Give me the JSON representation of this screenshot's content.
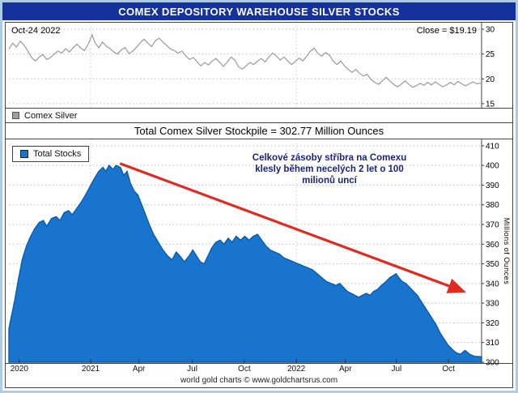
{
  "header": {
    "title": "COMEX DEPOSITORY WAREHOUSE SILVER STOCKS"
  },
  "price_panel": {
    "date_label": "Oct-24  2022",
    "close_label": "Close = $19.19",
    "legend_label": "Comex Silver"
  },
  "stock_panel": {
    "title": "Total Comex Silver Stockpile = 302.77 Million Ounces",
    "legend_label": "Total Stocks",
    "annotation_lines": [
      "Celkové zásoby stříbra na Comexu",
      "klesly během necelých 2 let o 100",
      "milionů uncí"
    ],
    "y_axis_label": "Millions of Ounces"
  },
  "footer": {
    "credit": "world gold charts © www.goldchartsrus.com"
  },
  "colors": {
    "header_bg": "#14319c",
    "area_fill": "#1874cd",
    "area_stroke": "#0d5ca8",
    "price_line": "#9a9a9a",
    "arrow": "#e02b20",
    "annotation_text": "#1c2478"
  },
  "chart_data": [
    {
      "type": "line",
      "name": "Comex Silver Price (USD/oz)",
      "title": "Comex Silver",
      "close": 19.19,
      "close_date": "Oct-24 2022",
      "ylim": [
        14.5,
        31
      ],
      "yticks": [
        15,
        20,
        25,
        30
      ],
      "grid": true,
      "legend_position": "bottom-left",
      "stroke": "#9a9a9a",
      "vgrid": [
        0.173,
        0.608
      ],
      "x_note": "x is fraction of time axis, mid-2020 through Oct-2022",
      "points": [
        [
          0.0,
          26.0
        ],
        [
          0.008,
          27.2
        ],
        [
          0.016,
          26.4
        ],
        [
          0.024,
          27.6
        ],
        [
          0.032,
          26.8
        ],
        [
          0.04,
          25.6
        ],
        [
          0.048,
          24.3
        ],
        [
          0.056,
          23.6
        ],
        [
          0.064,
          24.4
        ],
        [
          0.072,
          24.9
        ],
        [
          0.08,
          23.9
        ],
        [
          0.088,
          24.3
        ],
        [
          0.096,
          25.0
        ],
        [
          0.104,
          25.6
        ],
        [
          0.112,
          25.2
        ],
        [
          0.12,
          26.1
        ],
        [
          0.128,
          25.4
        ],
        [
          0.136,
          26.3
        ],
        [
          0.144,
          27.0
        ],
        [
          0.152,
          26.2
        ],
        [
          0.16,
          25.7
        ],
        [
          0.168,
          27.0
        ],
        [
          0.176,
          28.9
        ],
        [
          0.182,
          27.3
        ],
        [
          0.19,
          26.3
        ],
        [
          0.198,
          27.4
        ],
        [
          0.206,
          26.6
        ],
        [
          0.214,
          26.1
        ],
        [
          0.222,
          25.4
        ],
        [
          0.23,
          25.0
        ],
        [
          0.238,
          25.9
        ],
        [
          0.246,
          26.3
        ],
        [
          0.254,
          25.1
        ],
        [
          0.262,
          25.6
        ],
        [
          0.27,
          26.4
        ],
        [
          0.278,
          27.3
        ],
        [
          0.286,
          28.0
        ],
        [
          0.294,
          27.2
        ],
        [
          0.302,
          26.5
        ],
        [
          0.31,
          27.7
        ],
        [
          0.318,
          28.2
        ],
        [
          0.326,
          27.4
        ],
        [
          0.334,
          26.7
        ],
        [
          0.342,
          26.0
        ],
        [
          0.35,
          25.7
        ],
        [
          0.358,
          25.2
        ],
        [
          0.366,
          25.6
        ],
        [
          0.374,
          24.7
        ],
        [
          0.382,
          23.9
        ],
        [
          0.39,
          24.3
        ],
        [
          0.398,
          23.5
        ],
        [
          0.406,
          22.6
        ],
        [
          0.414,
          23.3
        ],
        [
          0.422,
          22.8
        ],
        [
          0.43,
          23.6
        ],
        [
          0.438,
          24.1
        ],
        [
          0.446,
          23.3
        ],
        [
          0.454,
          22.5
        ],
        [
          0.462,
          23.4
        ],
        [
          0.47,
          24.4
        ],
        [
          0.478,
          23.8
        ],
        [
          0.486,
          22.4
        ],
        [
          0.494,
          22.0
        ],
        [
          0.502,
          22.6
        ],
        [
          0.51,
          23.3
        ],
        [
          0.518,
          22.9
        ],
        [
          0.526,
          23.6
        ],
        [
          0.534,
          24.1
        ],
        [
          0.542,
          23.4
        ],
        [
          0.55,
          24.4
        ],
        [
          0.558,
          25.2
        ],
        [
          0.566,
          24.6
        ],
        [
          0.574,
          23.8
        ],
        [
          0.582,
          24.4
        ],
        [
          0.59,
          23.6
        ],
        [
          0.598,
          22.9
        ],
        [
          0.606,
          23.5
        ],
        [
          0.614,
          24.2
        ],
        [
          0.622,
          23.6
        ],
        [
          0.63,
          24.6
        ],
        [
          0.638,
          25.6
        ],
        [
          0.646,
          26.2
        ],
        [
          0.654,
          25.1
        ],
        [
          0.662,
          24.6
        ],
        [
          0.67,
          25.3
        ],
        [
          0.678,
          24.8
        ],
        [
          0.686,
          23.6
        ],
        [
          0.694,
          22.9
        ],
        [
          0.702,
          23.6
        ],
        [
          0.71,
          22.6
        ],
        [
          0.718,
          21.9
        ],
        [
          0.726,
          21.3
        ],
        [
          0.734,
          21.9
        ],
        [
          0.742,
          21.1
        ],
        [
          0.75,
          20.6
        ],
        [
          0.758,
          20.9
        ],
        [
          0.766,
          19.9
        ],
        [
          0.774,
          19.3
        ],
        [
          0.782,
          18.9
        ],
        [
          0.79,
          19.6
        ],
        [
          0.798,
          20.3
        ],
        [
          0.806,
          19.6
        ],
        [
          0.814,
          18.9
        ],
        [
          0.822,
          18.4
        ],
        [
          0.83,
          18.9
        ],
        [
          0.838,
          19.6
        ],
        [
          0.846,
          18.9
        ],
        [
          0.854,
          18.3
        ],
        [
          0.862,
          18.6
        ],
        [
          0.87,
          19.1
        ],
        [
          0.878,
          18.7
        ],
        [
          0.886,
          19.3
        ],
        [
          0.894,
          18.8
        ],
        [
          0.902,
          19.4
        ],
        [
          0.91,
          18.9
        ],
        [
          0.918,
          18.4
        ],
        [
          0.926,
          18.8
        ],
        [
          0.934,
          19.3
        ],
        [
          0.942,
          18.8
        ],
        [
          0.95,
          19.5
        ],
        [
          0.958,
          19.0
        ],
        [
          0.966,
          18.6
        ],
        [
          0.974,
          19.0
        ],
        [
          0.982,
          19.4
        ],
        [
          0.99,
          19.0
        ],
        [
          1.0,
          19.19
        ]
      ]
    },
    {
      "type": "area",
      "name": "Total Comex Silver Stockpile (Million Ounces)",
      "title": "Total Comex Silver Stockpile = 302.77 Million Ounces",
      "current": 302.77,
      "ylabel": "Millions of Ounces",
      "ylim": [
        300,
        412
      ],
      "yticks": [
        300,
        310,
        320,
        330,
        340,
        350,
        360,
        370,
        380,
        390,
        400,
        410
      ],
      "grid": true,
      "legend_position": "top-left",
      "fill": "#1874cd",
      "stroke": "#0d5ca8",
      "vgrid": [
        0.173,
        0.608
      ],
      "x_ticks": [
        {
          "label": "2020",
          "f": 0.022
        },
        {
          "label": "2021",
          "f": 0.173
        },
        {
          "label": "Apr",
          "f": 0.275
        },
        {
          "label": "Jul",
          "f": 0.388
        },
        {
          "label": "Oct",
          "f": 0.498
        },
        {
          "label": "2022",
          "f": 0.608
        },
        {
          "label": "Apr",
          "f": 0.712
        },
        {
          "label": "Jul",
          "f": 0.82
        },
        {
          "label": "Oct",
          "f": 0.93
        }
      ],
      "trend_arrow": {
        "from": [
          0.235,
          401
        ],
        "to": [
          0.962,
          336
        ],
        "color": "#e02b20"
      },
      "points": [
        [
          0.0,
          317
        ],
        [
          0.005,
          323
        ],
        [
          0.012,
          331
        ],
        [
          0.02,
          342
        ],
        [
          0.028,
          352
        ],
        [
          0.037,
          359
        ],
        [
          0.046,
          364
        ],
        [
          0.055,
          368
        ],
        [
          0.064,
          371
        ],
        [
          0.073,
          372
        ],
        [
          0.08,
          369
        ],
        [
          0.09,
          373
        ],
        [
          0.1,
          374
        ],
        [
          0.108,
          372
        ],
        [
          0.117,
          376
        ],
        [
          0.126,
          377
        ],
        [
          0.134,
          375
        ],
        [
          0.143,
          378
        ],
        [
          0.152,
          381
        ],
        [
          0.162,
          385
        ],
        [
          0.171,
          389
        ],
        [
          0.18,
          393
        ],
        [
          0.19,
          397
        ],
        [
          0.199,
          399
        ],
        [
          0.205,
          397
        ],
        [
          0.212,
          400
        ],
        [
          0.22,
          398
        ],
        [
          0.227,
          400
        ],
        [
          0.236,
          399
        ],
        [
          0.243,
          395
        ],
        [
          0.25,
          397
        ],
        [
          0.257,
          391
        ],
        [
          0.265,
          387
        ],
        [
          0.273,
          385
        ],
        [
          0.281,
          380
        ],
        [
          0.289,
          375
        ],
        [
          0.297,
          370
        ],
        [
          0.306,
          365
        ],
        [
          0.316,
          361
        ],
        [
          0.326,
          357
        ],
        [
          0.336,
          354
        ],
        [
          0.345,
          352
        ],
        [
          0.354,
          356
        ],
        [
          0.362,
          354
        ],
        [
          0.371,
          351
        ],
        [
          0.381,
          354
        ],
        [
          0.389,
          357
        ],
        [
          0.397,
          354
        ],
        [
          0.405,
          351
        ],
        [
          0.413,
          350
        ],
        [
          0.421,
          354
        ],
        [
          0.429,
          358
        ],
        [
          0.438,
          361
        ],
        [
          0.447,
          362
        ],
        [
          0.455,
          360
        ],
        [
          0.464,
          363
        ],
        [
          0.472,
          361
        ],
        [
          0.481,
          364
        ],
        [
          0.49,
          362
        ],
        [
          0.499,
          364
        ],
        [
          0.508,
          362
        ],
        [
          0.517,
          364
        ],
        [
          0.526,
          365
        ],
        [
          0.535,
          362
        ],
        [
          0.544,
          359
        ],
        [
          0.553,
          357
        ],
        [
          0.562,
          356
        ],
        [
          0.572,
          355
        ],
        [
          0.582,
          353
        ],
        [
          0.592,
          352
        ],
        [
          0.602,
          351
        ],
        [
          0.612,
          350
        ],
        [
          0.622,
          349
        ],
        [
          0.632,
          348
        ],
        [
          0.642,
          347
        ],
        [
          0.652,
          345
        ],
        [
          0.662,
          343
        ],
        [
          0.672,
          341
        ],
        [
          0.682,
          340
        ],
        [
          0.692,
          339
        ],
        [
          0.7,
          340
        ],
        [
          0.708,
          338
        ],
        [
          0.716,
          336
        ],
        [
          0.724,
          335
        ],
        [
          0.732,
          334
        ],
        [
          0.74,
          333
        ],
        [
          0.748,
          334
        ],
        [
          0.756,
          335
        ],
        [
          0.764,
          334
        ],
        [
          0.772,
          336
        ],
        [
          0.78,
          337
        ],
        [
          0.788,
          339
        ],
        [
          0.798,
          341
        ],
        [
          0.806,
          343
        ],
        [
          0.813,
          344
        ],
        [
          0.819,
          345
        ],
        [
          0.825,
          343
        ],
        [
          0.832,
          341
        ],
        [
          0.84,
          340
        ],
        [
          0.848,
          338
        ],
        [
          0.856,
          336
        ],
        [
          0.864,
          334
        ],
        [
          0.872,
          331
        ],
        [
          0.88,
          328
        ],
        [
          0.888,
          325
        ],
        [
          0.896,
          322
        ],
        [
          0.904,
          319
        ],
        [
          0.912,
          315
        ],
        [
          0.92,
          312
        ],
        [
          0.928,
          309
        ],
        [
          0.936,
          307
        ],
        [
          0.945,
          305
        ],
        [
          0.955,
          304
        ],
        [
          0.965,
          306
        ],
        [
          0.975,
          304
        ],
        [
          0.985,
          303
        ],
        [
          1.0,
          302.77
        ]
      ]
    }
  ]
}
